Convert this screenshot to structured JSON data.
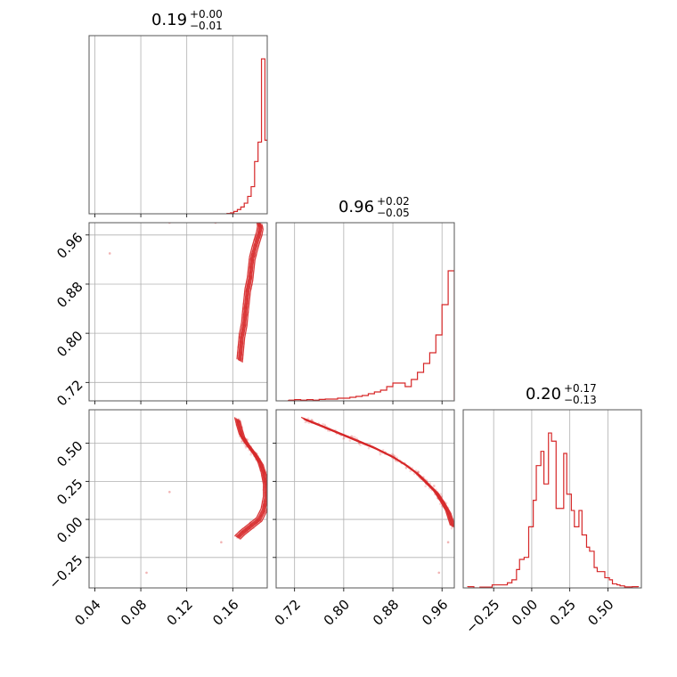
{
  "colors": {
    "accent": "#d62728",
    "grid": "#b0b0b0",
    "frame": "#555555"
  },
  "chart_data": [
    {
      "id": "hist-p1",
      "type": "histogram",
      "title": {
        "base": "0.19",
        "sup": "+0.00",
        "sub": "−0.01"
      },
      "xlim": [
        0.035,
        0.19
      ],
      "x_ticks": [
        0.04,
        0.08,
        0.12,
        0.16
      ],
      "x_tick_labels": [
        "0.04",
        "0.08",
        "0.12",
        "0.16"
      ],
      "grid": true,
      "bins": [
        0.155,
        0.158,
        0.161,
        0.164,
        0.167,
        0.17,
        0.173,
        0.176,
        0.179,
        0.182,
        0.185,
        0.188,
        0.191
      ],
      "counts": [
        0.2,
        0.5,
        1.2,
        2.2,
        3.5,
        5.5,
        9,
        14,
        27,
        37,
        80,
        38
      ]
    },
    {
      "id": "hist-p2",
      "type": "histogram",
      "title": {
        "base": "0.96",
        "sup": "+0.02",
        "sub": "−0.05"
      },
      "xlim": [
        0.69,
        0.98
      ],
      "ylim": [
        0,
        100
      ],
      "x_ticks": [
        0.72,
        0.8,
        0.88,
        0.96
      ],
      "x_tick_labels": [
        "0.72",
        "0.80",
        "0.88",
        "0.96"
      ],
      "grid": true,
      "bins": [
        0.71,
        0.72,
        0.73,
        0.74,
        0.75,
        0.76,
        0.77,
        0.78,
        0.79,
        0.8,
        0.81,
        0.82,
        0.83,
        0.84,
        0.85,
        0.86,
        0.87,
        0.88,
        0.89,
        0.9,
        0.91,
        0.92,
        0.93,
        0.94,
        0.95,
        0.96,
        0.97,
        0.98
      ],
      "counts": [
        0.4,
        0.7,
        0.4,
        0.7,
        0.4,
        0.8,
        1,
        1,
        1.5,
        1.5,
        2,
        2.5,
        3,
        4,
        5,
        6,
        8,
        10,
        10,
        8,
        12,
        16,
        21,
        27,
        37,
        54,
        73
      ]
    },
    {
      "id": "hist-p3",
      "type": "histogram",
      "title": {
        "base": "0.20",
        "sup": "+0.17",
        "sub": "−0.13"
      },
      "xlim": [
        -0.45,
        0.72
      ],
      "x_ticks": [
        -0.25,
        0.0,
        0.25,
        0.5
      ],
      "x_tick_labels": [
        "−0.25",
        "0.00",
        "0.25",
        "0.50"
      ],
      "grid": true,
      "bins": [
        -0.42,
        -0.38,
        -0.34,
        -0.32,
        -0.29,
        -0.26,
        -0.24,
        -0.21,
        -0.18,
        -0.16,
        -0.13,
        -0.1,
        -0.08,
        -0.05,
        -0.02,
        0.01,
        0.03,
        0.06,
        0.08,
        0.11,
        0.13,
        0.16,
        0.18,
        0.21,
        0.23,
        0.26,
        0.28,
        0.31,
        0.33,
        0.36,
        0.38,
        0.41,
        0.43,
        0.46,
        0.48,
        0.51,
        0.53,
        0.56,
        0.58,
        0.61,
        0.63,
        0.66,
        0.7
      ],
      "counts": [
        0.6,
        0.0,
        0.4,
        0.4,
        0.4,
        1.5,
        1.5,
        1.5,
        1.5,
        2.5,
        4,
        9,
        14,
        15,
        30,
        43,
        60,
        67,
        51,
        76,
        72,
        39,
        39,
        66,
        46,
        38,
        30,
        38,
        26,
        20,
        18,
        10,
        8,
        8,
        5,
        4,
        2,
        1.5,
        1,
        0.5,
        0.5,
        0.6
      ]
    },
    {
      "id": "scatter-p1-p2",
      "type": "scatter",
      "xlim": [
        0.035,
        0.19
      ],
      "ylim": [
        0.69,
        0.98
      ],
      "y_ticks": [
        0.72,
        0.8,
        0.88,
        0.96
      ],
      "y_tick_labels": [
        "0.72",
        "0.80",
        "0.88",
        "0.96"
      ],
      "grid": true,
      "curve_x": [
        0.183,
        0.184,
        0.183,
        0.181,
        0.179,
        0.177,
        0.176,
        0.175,
        0.173,
        0.172,
        0.171,
        0.17,
        0.168,
        0.167,
        0.166
      ],
      "curve_y": [
        0.98,
        0.972,
        0.962,
        0.95,
        0.937,
        0.922,
        0.905,
        0.888,
        0.87,
        0.852,
        0.835,
        0.815,
        0.795,
        0.775,
        0.755
      ],
      "outliers": [
        [
          0.053,
          0.93
        ],
        [
          0.105,
          0.98
        ],
        [
          0.145,
          0.98
        ]
      ]
    },
    {
      "id": "scatter-p1-p3",
      "type": "scatter",
      "xlim": [
        0.035,
        0.19
      ],
      "ylim": [
        -0.45,
        0.72
      ],
      "y_ticks": [
        -0.25,
        0.0,
        0.25,
        0.5
      ],
      "y_tick_labels": [
        "−0.25",
        "0.00",
        "0.25",
        "0.50"
      ],
      "grid": true,
      "curve_x": [
        0.164,
        0.166,
        0.168,
        0.172,
        0.176,
        0.18,
        0.184,
        0.187,
        0.189,
        0.189,
        0.187,
        0.183,
        0.178,
        0.173,
        0.168,
        0.164
      ],
      "curve_y": [
        0.66,
        0.6,
        0.55,
        0.5,
        0.46,
        0.42,
        0.37,
        0.3,
        0.22,
        0.14,
        0.06,
        0.0,
        -0.03,
        -0.06,
        -0.09,
        -0.12
      ],
      "outliers": [
        [
          0.105,
          0.18
        ],
        [
          0.085,
          -0.35
        ],
        [
          0.15,
          -0.15
        ]
      ]
    },
    {
      "id": "scatter-p2-p3",
      "type": "scatter",
      "xlim": [
        0.69,
        0.98
      ],
      "ylim": [
        -0.45,
        0.72
      ],
      "x_ticks": [
        0.72,
        0.8,
        0.88,
        0.96
      ],
      "x_tick_labels": [
        "0.72",
        "0.80",
        "0.88",
        "0.96"
      ],
      "grid": true,
      "curve_x": [
        0.735,
        0.76,
        0.79,
        0.82,
        0.85,
        0.88,
        0.9,
        0.92,
        0.935,
        0.95,
        0.96,
        0.97,
        0.978
      ],
      "curve_y": [
        0.66,
        0.62,
        0.57,
        0.52,
        0.47,
        0.41,
        0.36,
        0.3,
        0.24,
        0.18,
        0.12,
        0.05,
        -0.05
      ],
      "outliers": [
        [
          0.955,
          -0.35
        ],
        [
          0.97,
          -0.15
        ]
      ]
    }
  ]
}
